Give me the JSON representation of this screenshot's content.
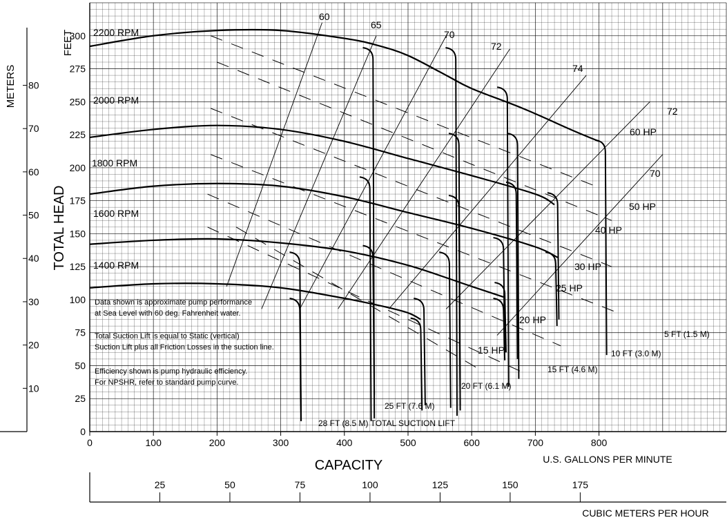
{
  "chart_data": {
    "type": "line",
    "title": "",
    "xlabel": "CAPACITY",
    "x_unit_label": "U.S. GALLONS PER MINUTE",
    "x2_unit_label": "CUBIC METERS PER HOUR",
    "ylabel": "TOTAL HEAD",
    "y_unit_label": "FEET",
    "y2_unit_label": "METERS",
    "xlim": [
      0,
      1000
    ],
    "ylim": [
      0,
      325
    ],
    "x_ticks": [
      "0",
      "100",
      "200",
      "300",
      "400",
      "500",
      "600",
      "700",
      "800"
    ],
    "y_ticks": [
      "0",
      "25",
      "50",
      "75",
      "100",
      "125",
      "150",
      "175",
      "200",
      "225",
      "250",
      "275",
      "300"
    ],
    "x2_ticks": [
      "25",
      "50",
      "75",
      "100",
      "125",
      "150",
      "175"
    ],
    "y2_ticks": [
      "10",
      "20",
      "30",
      "40",
      "50",
      "60",
      "70",
      "80"
    ],
    "grid": true,
    "series": [
      {
        "name": "2200 RPM",
        "x": [
          0,
          100,
          200,
          300,
          400,
          450,
          500,
          560,
          600,
          680,
          760,
          800
        ],
        "y": [
          292,
          300,
          304,
          304,
          298,
          293,
          285,
          270,
          260,
          245,
          228,
          220
        ]
      },
      {
        "name": "2000 RPM",
        "x": [
          0,
          100,
          200,
          300,
          400,
          500,
          600,
          700,
          730
        ],
        "y": [
          223,
          229,
          232,
          229,
          220,
          207,
          194,
          180,
          172
        ]
      },
      {
        "name": "1800 RPM",
        "x": [
          0,
          100,
          200,
          300,
          400,
          500,
          600,
          700,
          735
        ],
        "y": [
          180,
          186,
          188,
          186,
          178,
          166,
          154,
          140,
          132
        ]
      },
      {
        "name": "1600 RPM",
        "x": [
          0,
          100,
          200,
          300,
          400,
          500,
          600,
          650
        ],
        "y": [
          142,
          145,
          146,
          143,
          137,
          126,
          110,
          102
        ]
      },
      {
        "name": "1400 RPM",
        "x": [
          0,
          100,
          200,
          300,
          400,
          460,
          500,
          520
        ],
        "y": [
          109,
          112,
          112,
          109,
          101,
          95,
          90,
          85
        ]
      }
    ],
    "efficiency_labels": [
      "60",
      "65",
      "70",
      "72",
      "74",
      "72",
      "70"
    ],
    "horsepower_labels": [
      "60 HP",
      "50 HP",
      "40 HP",
      "30 HP",
      "25 HP",
      "20 HP",
      "15 HP"
    ],
    "suction_lift_labels": [
      "28 FT (8.5 M) TOTAL SUCTION LIFT",
      "25 FT (7.6 M)",
      "20 FT (6.1 M)",
      "15 FT (4.6 M)",
      "10 FT (3.0 M)",
      "5 FT (1.5 M)"
    ],
    "notes": [
      "Data shown is approximate pump performance",
      "at Sea Level with 60 deg. Fahrenheit water.",
      "Total Suction Lift is equal to Static (vertical)",
      "Suction Lift plus all Friction Losses in the suction line.",
      "Efficiency shown is pump hydraulic efficiency.",
      "For NPSHR, refer to standard pump curve."
    ]
  }
}
